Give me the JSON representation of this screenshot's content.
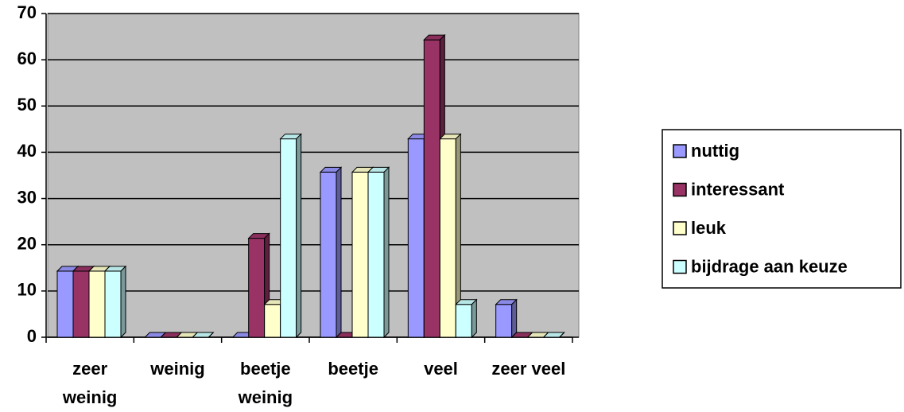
{
  "chart_data": {
    "type": "bar",
    "categories": [
      "zeer weinig",
      "weinig",
      "beetje weinig",
      "beetje",
      "veel",
      "zeer veel"
    ],
    "series": [
      {
        "name": "nuttig",
        "color": "#9999ff",
        "values": [
          14.3,
          0,
          0,
          35.7,
          42.9,
          7.1
        ]
      },
      {
        "name": "interessant",
        "color": "#993366",
        "values": [
          14.3,
          0,
          21.4,
          0,
          64.3,
          0
        ]
      },
      {
        "name": "leuk",
        "color": "#ffffcc",
        "values": [
          14.3,
          0,
          7.1,
          35.7,
          42.9,
          0
        ]
      },
      {
        "name": "bijdrage aan keuze",
        "color": "#ccffff",
        "values": [
          14.3,
          0,
          42.9,
          35.7,
          7.1,
          0
        ]
      }
    ],
    "ylim": [
      0,
      70
    ],
    "yticks": [
      0,
      10,
      20,
      30,
      40,
      50,
      60,
      70
    ],
    "grid": true,
    "legend": "right"
  }
}
